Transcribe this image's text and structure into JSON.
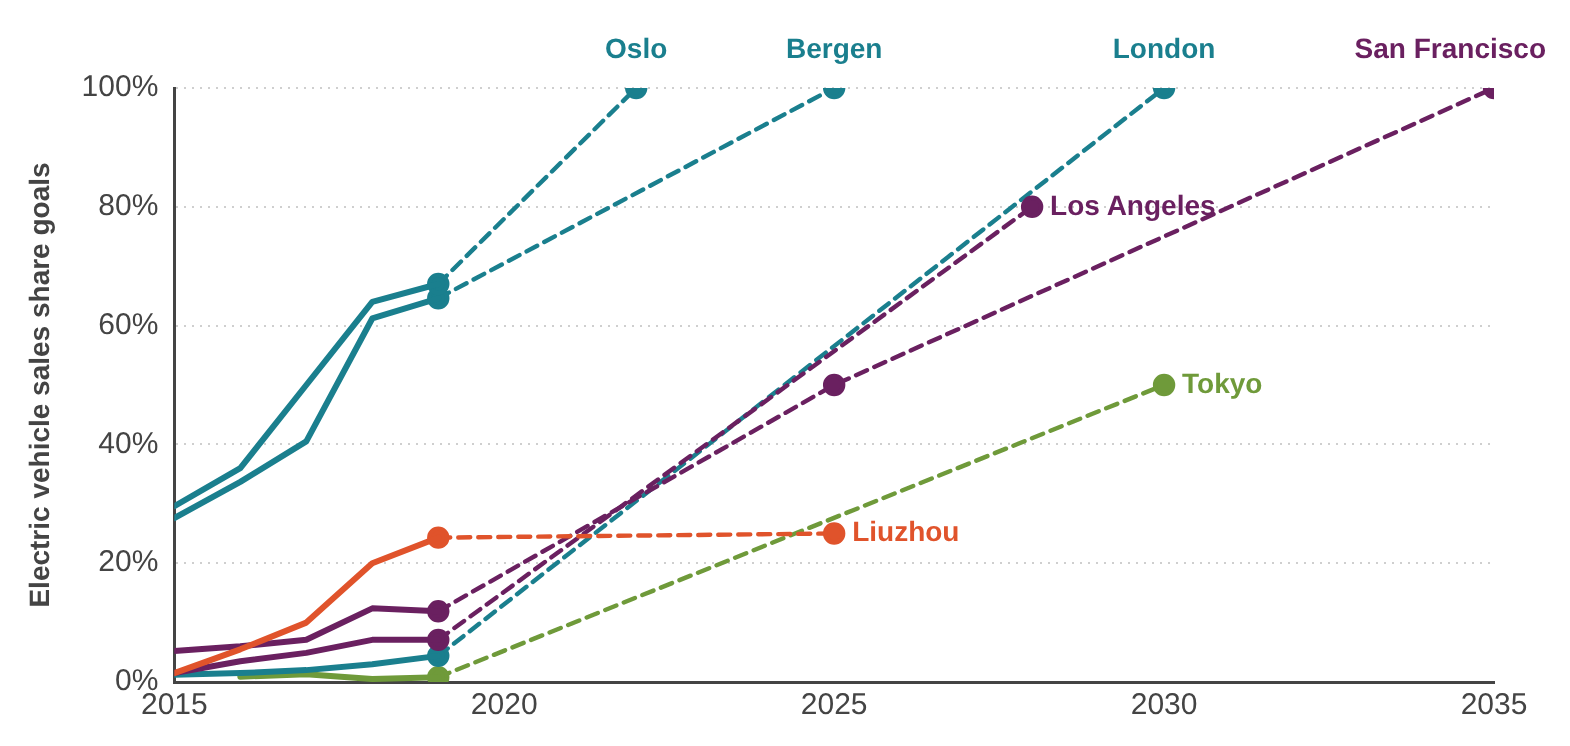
{
  "chart_data": {
    "type": "line",
    "ylabel": "Electric vehicle sales share goals",
    "xlim": [
      2015,
      2035
    ],
    "xticks": [
      2015,
      2020,
      2025,
      2030,
      2035
    ],
    "ylim": [
      0,
      100
    ],
    "yticks": [
      {
        "value": 0,
        "label": "0%"
      },
      {
        "value": 20,
        "label": "20%"
      },
      {
        "value": 40,
        "label": "40%"
      },
      {
        "value": 60,
        "label": "60%"
      },
      {
        "value": 80,
        "label": "80%"
      },
      {
        "value": 100,
        "label": "100%"
      }
    ],
    "grid": "y",
    "legend": false,
    "series": [
      {
        "color": "#1a7f8e",
        "x": [
          2015,
          2016,
          2017,
          2018,
          2019
        ],
        "values": [
          29.6,
          36,
          50,
          64,
          67
        ],
        "line_style": "solid",
        "marker": "none"
      },
      {
        "color": "#1a7f8e",
        "x": [
          2015,
          2016,
          2017,
          2018,
          2019
        ],
        "values": [
          27.6,
          33.7,
          40.5,
          61.2,
          64.6
        ],
        "line_style": "solid",
        "marker": "none"
      },
      {
        "color": "#e0532b",
        "x": [
          2015,
          2016,
          2017,
          2018,
          2019
        ],
        "values": [
          1.5,
          5.5,
          10,
          20,
          24.3
        ],
        "line_style": "solid",
        "marker": "none"
      },
      {
        "color": "#6a2060",
        "x": [
          2015,
          2016,
          2017,
          2018,
          2019
        ],
        "values": [
          5.2,
          6,
          7.1,
          12.4,
          11.9
        ],
        "line_style": "solid",
        "marker": "none"
      },
      {
        "color": "#6a2060",
        "x": [
          2015,
          2016,
          2017,
          2018,
          2019
        ],
        "values": [
          1.5,
          3.5,
          4.9,
          7.1,
          7.1
        ],
        "line_style": "solid",
        "marker": "none"
      },
      {
        "color": "#1a7f8e",
        "x": [
          2015,
          2016,
          2017,
          2018,
          2019
        ],
        "values": [
          1.2,
          1.5,
          2,
          3,
          4.4
        ],
        "line_style": "solid",
        "marker": "none"
      },
      {
        "color": "#6f9a3a",
        "x": [
          2016,
          2017,
          2018,
          2019
        ],
        "values": [
          0.9,
          1.3,
          0.5,
          0.8
        ],
        "line_style": "solid",
        "marker": "none"
      },
      {
        "name": "Oslo",
        "color": "#1a7f8e",
        "x": [
          2019,
          2022
        ],
        "values": [
          67,
          100
        ],
        "line_style": "dashed",
        "marker": "circle"
      },
      {
        "name": "Bergen",
        "color": "#1a7f8e",
        "x": [
          2019,
          2025
        ],
        "values": [
          64.6,
          100
        ],
        "line_style": "dashed",
        "marker": "circle"
      },
      {
        "name": "Liuzhou",
        "color": "#e0532b",
        "x": [
          2019,
          2025
        ],
        "values": [
          24.3,
          25
        ],
        "line_style": "dashed",
        "marker": "circle"
      },
      {
        "name": "San Francisco",
        "color": "#6a2060",
        "x": [
          2019,
          2025,
          2035
        ],
        "values": [
          11.9,
          50,
          100
        ],
        "line_style": "dashed",
        "marker": "circle"
      },
      {
        "name": "Los Angeles",
        "color": "#6a2060",
        "x": [
          2019,
          2028
        ],
        "values": [
          7.1,
          80
        ],
        "line_style": "dashed",
        "marker": "circle"
      },
      {
        "name": "London",
        "color": "#1a7f8e",
        "x": [
          2019,
          2030
        ],
        "values": [
          4.4,
          100
        ],
        "line_style": "dashed",
        "marker": "circle"
      },
      {
        "name": "Tokyo",
        "color": "#6f9a3a",
        "x": [
          2019,
          2030
        ],
        "values": [
          0.8,
          50
        ],
        "line_style": "dashed",
        "marker": "circle"
      }
    ]
  }
}
